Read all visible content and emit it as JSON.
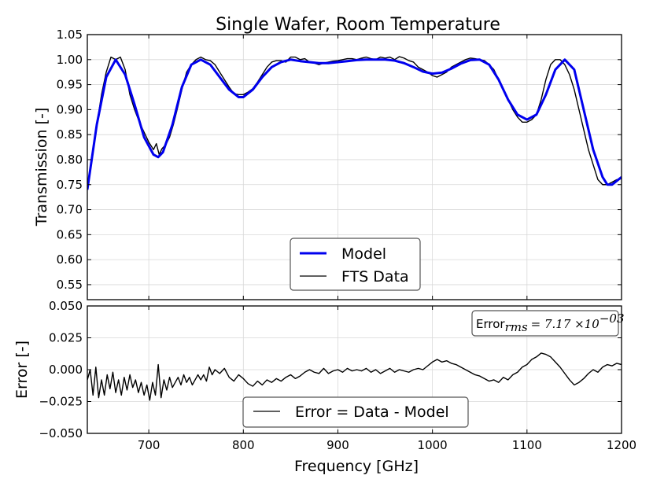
{
  "chart_data": [
    {
      "type": "line",
      "title": "Single Wafer, Room Temperature",
      "xlabel": "",
      "ylabel": "Transmission [-]",
      "xlim": [
        635,
        1200
      ],
      "ylim": [
        0.52,
        1.05
      ],
      "xticks": [
        700,
        800,
        900,
        1000,
        1100,
        1200
      ],
      "yticks": [
        "0.55",
        "0.60",
        "0.65",
        "0.70",
        "0.75",
        "0.80",
        "0.85",
        "0.90",
        "0.95",
        "1.00",
        "1.05"
      ],
      "grid": true,
      "legend_position": "lower-center",
      "series": [
        {
          "name": "Model",
          "color": "#0000ee",
          "x": [
            635,
            645,
            655,
            665,
            675,
            685,
            695,
            705,
            710,
            715,
            725,
            735,
            745,
            755,
            765,
            775,
            785,
            795,
            800,
            810,
            820,
            830,
            840,
            850,
            860,
            870,
            880,
            890,
            900,
            910,
            920,
            930,
            940,
            950,
            960,
            970,
            980,
            990,
            1000,
            1010,
            1020,
            1030,
            1040,
            1050,
            1060,
            1070,
            1080,
            1090,
            1100,
            1110,
            1120,
            1130,
            1140,
            1150,
            1160,
            1170,
            1180,
            1185,
            1190,
            1200
          ],
          "y": [
            0.74,
            0.87,
            0.965,
            1.0,
            0.97,
            0.91,
            0.845,
            0.81,
            0.805,
            0.815,
            0.87,
            0.945,
            0.99,
            1.0,
            0.99,
            0.965,
            0.94,
            0.925,
            0.925,
            0.94,
            0.965,
            0.985,
            0.995,
            1.0,
            0.997,
            0.995,
            0.993,
            0.993,
            0.995,
            0.997,
            0.999,
            1.0,
            1.0,
            1.0,
            0.998,
            0.993,
            0.985,
            0.976,
            0.972,
            0.974,
            0.982,
            0.992,
            0.999,
            1.0,
            0.99,
            0.96,
            0.92,
            0.89,
            0.88,
            0.89,
            0.93,
            0.98,
            1.0,
            0.98,
            0.9,
            0.82,
            0.765,
            0.75,
            0.75,
            0.765
          ]
        },
        {
          "name": "FTS Data",
          "color": "#000000",
          "x": [
            635,
            640,
            645,
            650,
            655,
            660,
            665,
            670,
            675,
            680,
            685,
            690,
            695,
            700,
            705,
            708,
            711,
            714,
            718,
            722,
            726,
            730,
            735,
            740,
            745,
            750,
            755,
            760,
            765,
            770,
            775,
            780,
            785,
            790,
            795,
            800,
            805,
            810,
            815,
            820,
            825,
            830,
            835,
            840,
            845,
            850,
            855,
            860,
            865,
            870,
            875,
            880,
            885,
            890,
            895,
            900,
            905,
            910,
            915,
            920,
            925,
            930,
            935,
            940,
            945,
            950,
            955,
            960,
            965,
            970,
            975,
            980,
            985,
            990,
            995,
            1000,
            1005,
            1010,
            1015,
            1020,
            1025,
            1030,
            1035,
            1040,
            1045,
            1050,
            1055,
            1060,
            1065,
            1070,
            1075,
            1080,
            1085,
            1090,
            1095,
            1100,
            1105,
            1110,
            1115,
            1120,
            1125,
            1130,
            1135,
            1140,
            1145,
            1150,
            1155,
            1160,
            1165,
            1170,
            1175,
            1180,
            1185,
            1190,
            1195,
            1200
          ],
          "y": [
            0.742,
            0.8,
            0.87,
            0.93,
            0.975,
            1.005,
            1.0,
            1.005,
            0.98,
            0.93,
            0.9,
            0.875,
            0.855,
            0.835,
            0.82,
            0.832,
            0.81,
            0.822,
            0.83,
            0.845,
            0.87,
            0.9,
            0.94,
            0.975,
            0.99,
            1.0,
            1.005,
            1.0,
            0.998,
            0.99,
            0.975,
            0.96,
            0.945,
            0.932,
            0.93,
            0.93,
            0.935,
            0.942,
            0.955,
            0.97,
            0.985,
            0.995,
            0.998,
            0.998,
            0.995,
            1.005,
            1.005,
            1.0,
            1.002,
            0.995,
            0.993,
            0.99,
            0.993,
            0.995,
            0.997,
            0.998,
            1.0,
            1.002,
            1.002,
            1.0,
            1.003,
            1.005,
            1.002,
            1.0,
            1.005,
            1.003,
            1.005,
            1.0,
            1.006,
            1.003,
            0.998,
            0.995,
            0.985,
            0.98,
            0.975,
            0.968,
            0.965,
            0.97,
            0.975,
            0.985,
            0.99,
            0.995,
            1.0,
            1.003,
            1.002,
            1.0,
            0.998,
            0.99,
            0.98,
            0.96,
            0.94,
            0.92,
            0.9,
            0.885,
            0.875,
            0.875,
            0.88,
            0.89,
            0.92,
            0.96,
            0.99,
            1.0,
            1.0,
            0.99,
            0.97,
            0.94,
            0.9,
            0.86,
            0.82,
            0.79,
            0.76,
            0.75,
            0.75,
            0.755,
            0.76,
            0.762
          ]
        }
      ]
    },
    {
      "type": "line",
      "title": "",
      "xlabel": "Frequency [GHz]",
      "ylabel": "Error [-]",
      "xlim": [
        635,
        1200
      ],
      "ylim": [
        -0.05,
        0.05
      ],
      "xticks": [
        700,
        800,
        900,
        1000,
        1100,
        1200
      ],
      "yticks": [
        "−0.050",
        "−0.025",
        "0.000",
        "0.025",
        "0.050"
      ],
      "grid": true,
      "legend_position": "lower-center",
      "annotation": {
        "text": "Error",
        "subscript": "rms",
        "value": "= 7.17 ×10",
        "exponent": "−03"
      },
      "series": [
        {
          "name": "Error = Data - Model",
          "color": "#000000",
          "x": [
            635,
            638,
            641,
            644,
            647,
            650,
            653,
            656,
            659,
            662,
            665,
            668,
            671,
            674,
            677,
            680,
            683,
            686,
            689,
            692,
            695,
            698,
            701,
            704,
            707,
            710,
            713,
            716,
            719,
            722,
            725,
            728,
            731,
            734,
            737,
            740,
            743,
            746,
            749,
            752,
            755,
            758,
            761,
            764,
            767,
            770,
            775,
            780,
            785,
            790,
            795,
            800,
            805,
            810,
            815,
            820,
            825,
            830,
            835,
            840,
            845,
            850,
            855,
            860,
            865,
            870,
            875,
            880,
            885,
            890,
            895,
            900,
            905,
            910,
            915,
            920,
            925,
            930,
            935,
            940,
            945,
            950,
            955,
            960,
            965,
            970,
            975,
            980,
            985,
            990,
            995,
            1000,
            1005,
            1010,
            1015,
            1020,
            1025,
            1030,
            1035,
            1040,
            1045,
            1050,
            1055,
            1060,
            1065,
            1070,
            1075,
            1080,
            1085,
            1090,
            1095,
            1100,
            1105,
            1110,
            1115,
            1120,
            1125,
            1130,
            1135,
            1140,
            1145,
            1150,
            1155,
            1160,
            1165,
            1170,
            1175,
            1180,
            1185,
            1190,
            1195,
            1200
          ],
          "y": [
            -0.008,
            0.0,
            -0.02,
            0.002,
            -0.022,
            -0.008,
            -0.02,
            -0.004,
            -0.015,
            -0.002,
            -0.018,
            -0.008,
            -0.02,
            -0.006,
            -0.016,
            -0.004,
            -0.014,
            -0.008,
            -0.018,
            -0.01,
            -0.02,
            -0.012,
            -0.024,
            -0.01,
            -0.02,
            0.004,
            -0.022,
            -0.008,
            -0.016,
            -0.006,
            -0.014,
            -0.01,
            -0.006,
            -0.012,
            -0.004,
            -0.01,
            -0.006,
            -0.012,
            -0.008,
            -0.004,
            -0.008,
            -0.004,
            -0.009,
            0.002,
            -0.004,
            0.0,
            -0.003,
            0.001,
            -0.006,
            -0.009,
            -0.004,
            -0.007,
            -0.011,
            -0.013,
            -0.009,
            -0.012,
            -0.008,
            -0.01,
            -0.007,
            -0.009,
            -0.006,
            -0.004,
            -0.007,
            -0.005,
            -0.002,
            0.0,
            -0.002,
            -0.003,
            0.001,
            -0.003,
            -0.001,
            0.0,
            -0.002,
            0.001,
            -0.001,
            0.0,
            -0.001,
            0.001,
            -0.002,
            0.0,
            -0.003,
            -0.001,
            0.001,
            -0.002,
            0.0,
            -0.001,
            -0.002,
            0.0,
            0.001,
            0.0,
            0.003,
            0.006,
            0.008,
            0.006,
            0.007,
            0.005,
            0.004,
            0.002,
            0.0,
            -0.002,
            -0.004,
            -0.005,
            -0.007,
            -0.009,
            -0.008,
            -0.01,
            -0.006,
            -0.008,
            -0.004,
            -0.002,
            0.002,
            0.004,
            0.008,
            0.01,
            0.013,
            0.012,
            0.01,
            0.006,
            0.002,
            -0.003,
            -0.008,
            -0.012,
            -0.01,
            -0.007,
            -0.003,
            0.0,
            -0.002,
            0.002,
            0.004,
            0.003,
            0.005,
            0.004
          ]
        }
      ]
    }
  ]
}
